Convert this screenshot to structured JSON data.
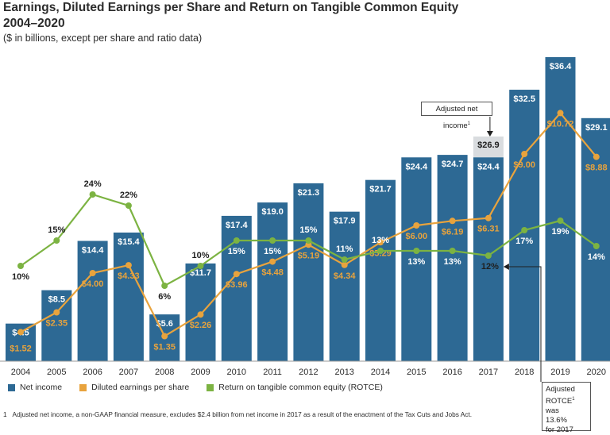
{
  "title": "Earnings, Diluted Earnings per Share and Return on Tangible Common Equity 2004–2020",
  "subtitle": "($ in billions, except per share and ratio data)",
  "colors": {
    "bar": "#2d6994",
    "bar_adjusted": "#d9dcdf",
    "eps": "#e8a33d",
    "rotce": "#7cb342"
  },
  "chart_data": {
    "type": "bar",
    "categories": [
      "2004",
      "2005",
      "2006",
      "2007",
      "2008",
      "2009",
      "2010",
      "2011",
      "2012",
      "2013",
      "2014",
      "2015",
      "2016",
      "2017",
      "2018",
      "2019",
      "2020"
    ],
    "series": [
      {
        "name": "Net income",
        "type": "bar",
        "values": [
          4.5,
          8.5,
          14.4,
          15.4,
          5.6,
          11.7,
          17.4,
          19.0,
          21.3,
          17.9,
          21.7,
          24.4,
          24.7,
          24.4,
          32.5,
          36.4,
          29.1
        ],
        "labels": [
          "$4.5",
          "$8.5",
          "$14.4",
          "$15.4",
          "$5.6",
          "$11.7",
          "$17.4",
          "$19.0",
          "$21.3",
          "$17.9",
          "$21.7",
          "$24.4",
          "$24.7",
          "$24.4",
          "$32.5",
          "$36.4",
          "$29.1"
        ]
      },
      {
        "name": "Diluted earnings per share",
        "type": "line",
        "values": [
          1.52,
          2.35,
          4.0,
          4.33,
          1.35,
          2.26,
          3.96,
          4.48,
          5.19,
          4.34,
          5.29,
          6.0,
          6.19,
          6.31,
          9.0,
          10.72,
          8.88
        ],
        "labels": [
          "$1.52",
          "$2.35",
          "$4.00",
          "$4.33",
          "$1.35",
          "$2.26",
          "$3.96",
          "$4.48",
          "$5.19",
          "$4.34",
          "$5.29",
          "$6.00",
          "$6.19",
          "$6.31",
          "$9.00",
          "$10.72",
          "$8.88"
        ]
      },
      {
        "name": "Return on tangible common equity (ROTCE)",
        "type": "line",
        "values": [
          10,
          15,
          24,
          22,
          6,
          10,
          15,
          15,
          15,
          11,
          13,
          13,
          13,
          12,
          17,
          19,
          14
        ],
        "labels": [
          "10%",
          "15%",
          "24%",
          "22%",
          "6%",
          "10%",
          "15%",
          "15%",
          "15%",
          "11%",
          "13%",
          "13%",
          "13%",
          "12%",
          "17%",
          "19%",
          "14%"
        ]
      }
    ],
    "adjusted_net_income": {
      "category": "2017",
      "value": 26.9,
      "label": "$26.9"
    }
  },
  "legend": {
    "net_income": "Net income",
    "eps": "Diluted earnings per share",
    "rotce": "Return on tangible common equity (ROTCE)"
  },
  "annotations": {
    "adjusted_net_income": "Adjusted net income",
    "adjusted_rotce_line1": "Adjusted",
    "adjusted_rotce_line2": "ROTCE",
    "adjusted_rotce_line2_suffix": " was",
    "adjusted_rotce_line3": "13.6%",
    "adjusted_rotce_line4": "for 2017",
    "footnote_marker": "1"
  },
  "footnote": {
    "number": "1",
    "text": "Adjusted net income, a non-GAAP financial measure, excludes $2.4 billion from net income in 2017 as a result of the enactment of the Tax Cuts and Jobs Act."
  }
}
